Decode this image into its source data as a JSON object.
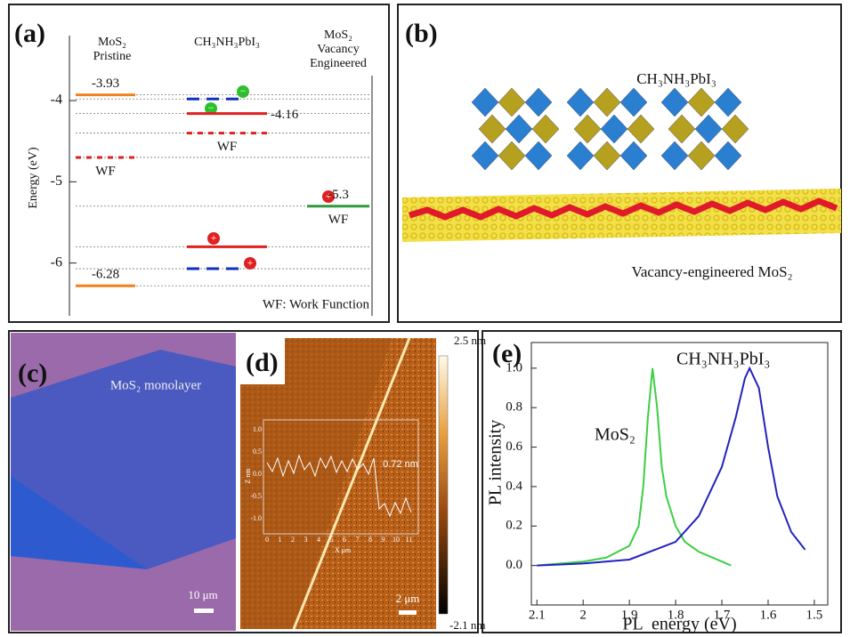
{
  "chart_data": [
    {
      "type": "energy-levels",
      "panel_label": "(a)",
      "ylabel": "Energy (eV)",
      "ylim": [
        -6.65,
        -3.2
      ],
      "yticks": [
        -6,
        -5,
        -4
      ],
      "note": "WF: Work Function",
      "columns": [
        {
          "label": "MoS₂ Pristine",
          "levels": [
            {
              "value": -3.93,
              "color": "#f0821e",
              "style": "solid",
              "labeled": true
            },
            {
              "value": -4.7,
              "color": "#e02020",
              "style": "dashdot",
              "annotation": "WF"
            },
            {
              "value": -6.28,
              "color": "#f0821e",
              "style": "solid",
              "labeled": true
            }
          ]
        },
        {
          "label": "CH₃NH₃PbI₃",
          "levels": [
            {
              "value": -3.98,
              "color": "#1030c0",
              "style": "dashed"
            },
            {
              "value": -4.16,
              "color": "#e02020",
              "style": "solid",
              "labeled": true
            },
            {
              "value": -4.4,
              "color": "#e02020",
              "style": "dashdot",
              "annotation": "WF"
            },
            {
              "value": -5.8,
              "color": "#e02020",
              "style": "solid"
            },
            {
              "value": -6.07,
              "color": "#1030c0",
              "style": "dashed"
            }
          ]
        },
        {
          "label": "MoS₂ Vacancy Engineered",
          "levels": [
            {
              "value": -5.3,
              "color": "#2e9a3a",
              "style": "solid",
              "labeled": true,
              "annotation": "WF"
            }
          ]
        }
      ]
    },
    {
      "type": "line",
      "panel_label": "(e)",
      "xlabel": "PL  energy (eV)",
      "ylabel": "PL intensity",
      "xlim": [
        2.112,
        1.471
      ],
      "ylim": [
        -0.2,
        1.13
      ],
      "xticks": [
        2.1,
        2.0,
        1.9,
        1.8,
        1.7,
        1.6,
        1.5
      ],
      "yticks": [
        {
          "value": 0,
          "label": "0.0"
        },
        {
          "value": 0.2,
          "label": "0.2"
        },
        {
          "value": 0.4,
          "label": "0.4"
        },
        {
          "value": 0.6,
          "label": "0.6"
        },
        {
          "value": 0.8,
          "label": "0.8"
        },
        {
          "value": 1,
          "label": "1.0"
        }
      ],
      "series": [
        {
          "name": "MoS₂",
          "color": "#3ccf45",
          "x": [
            2.1,
            2.0,
            1.95,
            1.9,
            1.88,
            1.87,
            1.86,
            1.85,
            1.84,
            1.83,
            1.82,
            1.8,
            1.78,
            1.75,
            1.7,
            1.68
          ],
          "values": [
            0.0,
            0.02,
            0.04,
            0.1,
            0.2,
            0.4,
            0.75,
            1.0,
            0.8,
            0.5,
            0.35,
            0.2,
            0.12,
            0.07,
            0.02,
            0.0
          ]
        },
        {
          "name": "CH₃NH₃PbI₃",
          "color": "#2222c0",
          "x": [
            2.1,
            2.0,
            1.9,
            1.8,
            1.75,
            1.7,
            1.67,
            1.65,
            1.64,
            1.62,
            1.6,
            1.58,
            1.55,
            1.52
          ],
          "values": [
            0.0,
            0.01,
            0.03,
            0.12,
            0.25,
            0.5,
            0.75,
            0.95,
            1.0,
            0.9,
            0.6,
            0.35,
            0.17,
            0.08
          ]
        }
      ]
    }
  ],
  "panels": {
    "b": {
      "label": "(b)",
      "top_text": "CH₃NH₃PbI₃",
      "bottom_text": "Vacancy-engineered MoS₂"
    },
    "c": {
      "label": "(c)",
      "title": "MoS₂ monolayer",
      "scale": "10 μm"
    },
    "d": {
      "label": "(d)",
      "scale": "2 μm",
      "colorbar_top": "2.5 nm",
      "colorbar_bottom": "-2.1 nm",
      "step": "0.72 nm",
      "inset_xlabel": "X μm",
      "inset_ylabel": "Z nm",
      "inset_xticks": [
        "0",
        "1",
        "2",
        "3",
        "4",
        "5",
        "6",
        "7",
        "8",
        "9",
        "10",
        "11"
      ],
      "inset_yticks": [
        "1.0",
        "0.5",
        "0.0",
        "-0.5",
        "-1.0"
      ]
    }
  }
}
